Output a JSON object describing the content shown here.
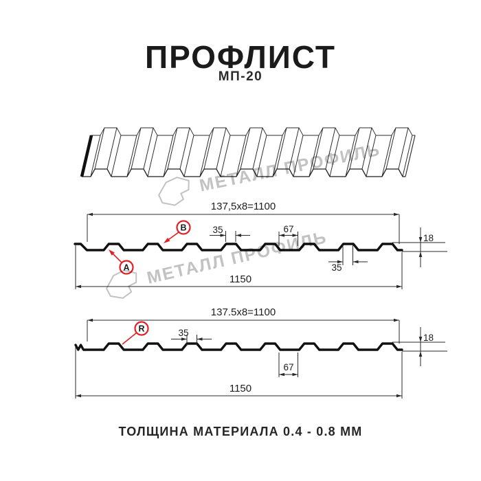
{
  "header": {
    "title": "ПРОФЛИСТ",
    "subtitle": "МП-20"
  },
  "footer": {
    "text": "ТОЛЩИНА МАТЕРИАЛА 0.4 - 0.8 ММ"
  },
  "watermark": {
    "brand": "МЕТАЛЛ ПРОФИЛЬ"
  },
  "colors": {
    "accent": "#e31e24",
    "line": "#2a2a2a",
    "profile": "#111111",
    "watermark": "#c2c2c2"
  },
  "profile_top": {
    "pitch_formula": "137,5x8=1100",
    "crest_width": "35",
    "valley_width": "67",
    "crest_width_right": "35",
    "height": "18",
    "overall_width": "1150",
    "side_label_a": "A",
    "side_label_b": "B"
  },
  "profile_bottom": {
    "pitch_formula": "137.5x8=1100",
    "crest_width": "35",
    "valley_width": "67",
    "height": "18",
    "overall_width": "1150",
    "side_label_r": "R"
  }
}
